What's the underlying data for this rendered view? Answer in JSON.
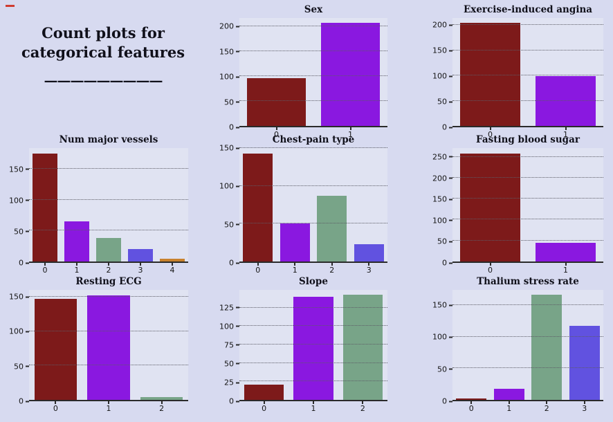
{
  "page": {
    "figure_background": "#d7daf0",
    "axes_background": "#e0e3f2",
    "axis_line_color": "#2a2a2a",
    "grid_color": "#5c5c66",
    "stray_mark_color": "#cf3b30"
  },
  "palette": [
    "#7d1a1a",
    "#8a18e0",
    "#78a488",
    "#6152e0",
    "#c8822d"
  ],
  "header": {
    "title_line1": "Count plots for",
    "title_line2": "categorical features",
    "divider": "—————————"
  },
  "chart_data": [
    {
      "type": "bar",
      "title": "Sex",
      "categories": [
        "0",
        "1"
      ],
      "values": [
        96,
        207
      ],
      "yticks": [
        0,
        50,
        100,
        150,
        200
      ],
      "ylim": [
        0,
        217
      ],
      "xlabel": "",
      "ylabel": "",
      "grid": "horizontal-dotted",
      "legend": "none"
    },
    {
      "type": "bar",
      "title": "Exercise-induced angina",
      "categories": [
        "0",
        "1"
      ],
      "values": [
        204,
        99
      ],
      "yticks": [
        0,
        50,
        100,
        150,
        200
      ],
      "ylim": [
        0,
        214
      ],
      "xlabel": "",
      "ylabel": "",
      "grid": "horizontal-dotted",
      "legend": "none"
    },
    {
      "type": "bar",
      "title": "Num major vessels",
      "categories": [
        "0",
        "1",
        "2",
        "3",
        "4"
      ],
      "values": [
        175,
        65,
        38,
        20,
        5
      ],
      "yticks": [
        0,
        50,
        100,
        150
      ],
      "ylim": [
        0,
        184
      ],
      "xlabel": "",
      "ylabel": "",
      "grid": "horizontal-dotted",
      "legend": "none"
    },
    {
      "type": "bar",
      "title": "Chest-pain type",
      "categories": [
        "0",
        "1",
        "2",
        "3"
      ],
      "values": [
        143,
        50,
        87,
        23
      ],
      "yticks": [
        0,
        50,
        100,
        150
      ],
      "ylim": [
        0,
        150.2
      ],
      "xlabel": "",
      "ylabel": "",
      "grid": "horizontal-dotted",
      "legend": "none"
    },
    {
      "type": "bar",
      "title": "Fasting blood sugar",
      "categories": [
        "0",
        "1"
      ],
      "values": [
        258,
        45
      ],
      "yticks": [
        0,
        50,
        100,
        150,
        200,
        250
      ],
      "ylim": [
        0,
        271
      ],
      "xlabel": "",
      "ylabel": "",
      "grid": "horizontal-dotted",
      "legend": "none"
    },
    {
      "type": "bar",
      "title": "Resting ECG",
      "categories": [
        "0",
        "1",
        "2"
      ],
      "values": [
        147,
        152,
        4
      ],
      "yticks": [
        0,
        50,
        100,
        150
      ],
      "ylim": [
        0,
        160
      ],
      "xlabel": "",
      "ylabel": "",
      "grid": "horizontal-dotted",
      "legend": "none"
    },
    {
      "type": "bar",
      "title": "Slope",
      "categories": [
        "0",
        "1",
        "2"
      ],
      "values": [
        21,
        140,
        142
      ],
      "yticks": [
        0,
        25,
        50,
        75,
        100,
        125
      ],
      "ylim": [
        0,
        149
      ],
      "xlabel": "",
      "ylabel": "",
      "grid": "horizontal-dotted",
      "legend": "none"
    },
    {
      "type": "bar",
      "title": "Thalium stress rate",
      "categories": [
        "0",
        "1",
        "2",
        "3"
      ],
      "values": [
        2,
        18,
        166,
        117
      ],
      "yticks": [
        0,
        50,
        100,
        150
      ],
      "ylim": [
        0,
        174
      ],
      "xlabel": "",
      "ylabel": "",
      "grid": "horizontal-dotted",
      "legend": "none"
    }
  ]
}
